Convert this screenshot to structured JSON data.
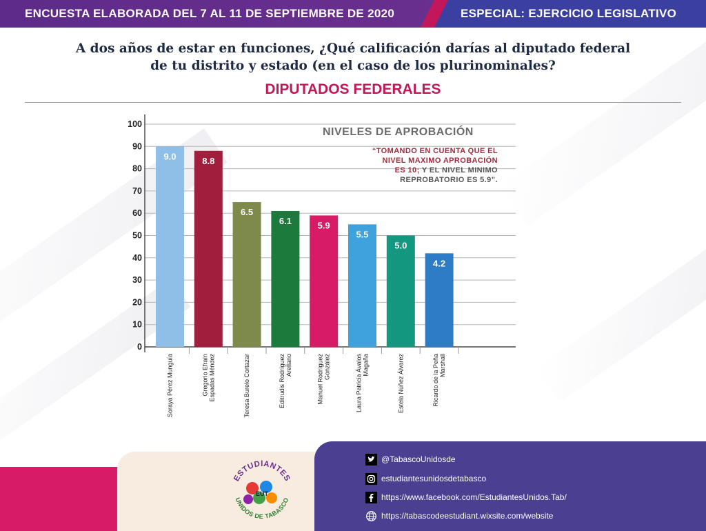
{
  "header": {
    "left_text": "ENCUESTA ELABORADA DEL  7 AL 11 DE SEPTIEMBRE DE 2020",
    "right_text": "ESPECIAL: EJERCICIO LEGISLATIVO"
  },
  "question_line1": "A dos años de estar en funciones, ¿Qué calificación darías al diputado federal",
  "question_line2": "de tu distrito y estado (en el caso de los plurinominales?",
  "subtitle": "DIPUTADOS FEDERALES",
  "legend": {
    "title": "NIVELES DE APROBACIÓN",
    "note_red_1": "“TOMANDO EN CUENTA QUE EL",
    "note_red_2": "NIVEL MAXIMO APROBACIÓN",
    "note_red_3": "ES 10;",
    "note_gray_3": " Y EL NIVEL MINIMO",
    "note_gray_4": "REPROBATORIO ES 5.9”."
  },
  "chart_data": {
    "type": "bar",
    "categories": [
      [
        "Soraya Pérez Munguía"
      ],
      [
        "Gregorio Efraín",
        "Espadas Méndez"
      ],
      [
        "Teresa Burelo Cortazar"
      ],
      [
        "Editrudis Rodríguez",
        "Arellano"
      ],
      [
        "Manuel Rodríguez",
        "González"
      ],
      [
        "Laura Patricia Ávalos",
        "Magaña"
      ],
      [
        "Estela Núñez Álvarez"
      ],
      [
        "Ricardo de la Peña",
        "Marshall"
      ]
    ],
    "values": [
      90,
      88,
      65,
      61,
      59,
      55,
      50,
      42
    ],
    "value_labels": [
      "9.0",
      "8.8",
      "6.5",
      "6.1",
      "5.9",
      "5.5",
      "5.0",
      "4.2"
    ],
    "colors": [
      "#8fbfe6",
      "#a11f3c",
      "#7e8a4b",
      "#1b7a3c",
      "#d81b66",
      "#3fa2dc",
      "#14977f",
      "#2d7cc4"
    ],
    "yticks": [
      0,
      10,
      20,
      30,
      40,
      50,
      60,
      70,
      80,
      90,
      100
    ],
    "ylim": [
      0,
      100
    ],
    "grid": true
  },
  "footer": {
    "twitter": "@TabascoUnidosde",
    "instagram": "estudiantesunidosdetabasco",
    "facebook": "https://www.facebook.com/EstudiantesUnidos.Tab/",
    "website": "https://tabascodeestudiant.wixsite.com/website",
    "logo_text_top": "ESTUDIANTES",
    "logo_text_mid": "EUT",
    "logo_text_bottom": "UNIDOS DE TABASCO",
    "icons": [
      "twitter-icon",
      "instagram-icon",
      "facebook-icon",
      "globe-icon"
    ]
  }
}
